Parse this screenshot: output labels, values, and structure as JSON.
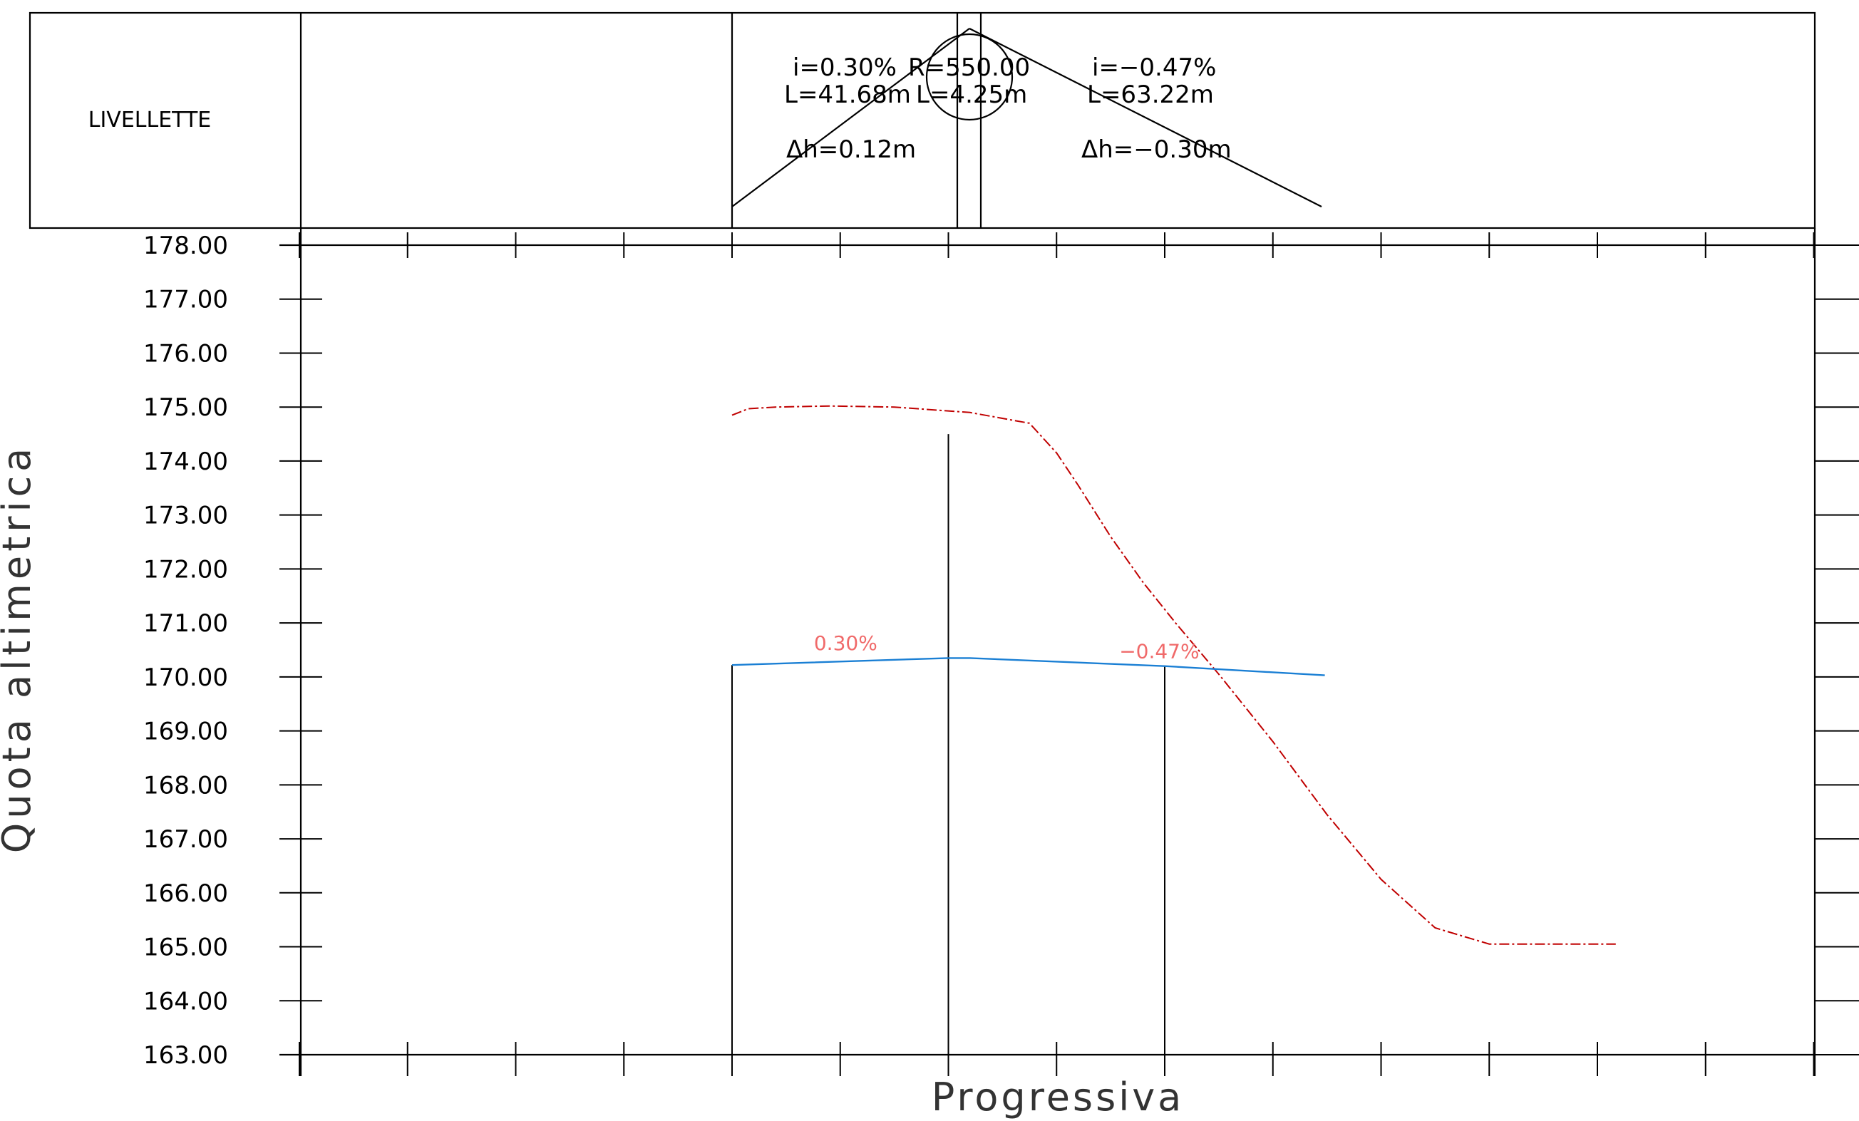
{
  "header": {
    "label": "LIVELLETTE",
    "left_slope_text": "i=0.30%",
    "left_length_text": "L=41.68m",
    "left_dh_text": "Δh=0.12m",
    "curve_radius_text": "R=550.00",
    "curve_length_text": "L=4.25m",
    "right_slope_text": "i=−0.47%",
    "right_length_text": "L=63.22m",
    "right_dh_text": "Δh=−0.30m"
  },
  "chart_data": {
    "type": "line",
    "xlabel": "Progressiva",
    "ylabel": "Quota altimetrica",
    "ylim": [
      163,
      178
    ],
    "y_ticks": [
      "163.00",
      "164.00",
      "165.00",
      "166.00",
      "167.00",
      "168.00",
      "169.00",
      "170.00",
      "171.00",
      "172.00",
      "173.00",
      "174.00",
      "175.00",
      "176.00",
      "177.00",
      "178.00"
    ],
    "xlim": [
      -40,
      100
    ],
    "x_minor_ticks": [
      -30,
      -20,
      -10,
      0,
      10,
      20,
      30,
      40,
      50,
      60,
      70,
      80,
      90,
      100
    ],
    "series": [
      {
        "kind": "terrain",
        "color": "#c00000",
        "dashed": true,
        "x": [
          0,
          1.5,
          4,
          9,
          15,
          22,
          27.5,
          30,
          32,
          35,
          38,
          41,
          45,
          50,
          55,
          60,
          65,
          70,
          75,
          79,
          81.7
        ],
        "y": [
          174.85,
          174.97,
          175.0,
          175.02,
          175.0,
          174.9,
          174.7,
          174.15,
          173.55,
          172.6,
          171.75,
          171.0,
          170.05,
          168.8,
          167.45,
          166.25,
          165.35,
          165.05,
          165.05,
          165.05,
          165.05
        ]
      },
      {
        "kind": "grade",
        "color": "#1a7fd4",
        "dashed": false,
        "x": [
          0,
          20,
          22,
          40,
          54.8
        ],
        "y": [
          170.22,
          170.35,
          170.35,
          170.2,
          170.03
        ]
      }
    ],
    "annotations": [
      {
        "text": "0.30%",
        "x": 10.5,
        "y": 170.5,
        "color": "#f06a6a"
      },
      {
        "text": "−0.47%",
        "x": 39.5,
        "y": 170.35,
        "color": "#f06a6a"
      }
    ],
    "vertical_markers": [
      {
        "x": 0,
        "y_top": 170.22
      },
      {
        "x": 20,
        "y_top": 174.5
      },
      {
        "x": 40,
        "y_top": 170.2
      }
    ]
  }
}
